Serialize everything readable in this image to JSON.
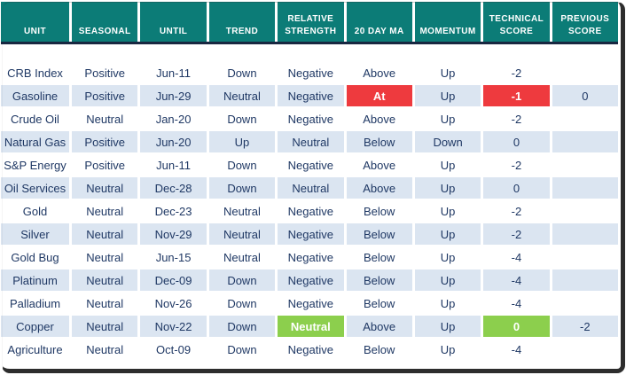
{
  "colors": {
    "header_bg": "#0c7c77",
    "divider": "#182741",
    "stripe": "#dbe5f1",
    "red": "#ee3a3e",
    "green": "#8ccf4d",
    "text": "#1f3864",
    "frame": "#2d2d2d"
  },
  "table": {
    "columns": [
      {
        "key": "unit",
        "label": "UNIT"
      },
      {
        "key": "seasonal",
        "label": "SEASONAL"
      },
      {
        "key": "until",
        "label": "UNTIL"
      },
      {
        "key": "trend",
        "label": "TREND"
      },
      {
        "key": "relative_strength",
        "label": "RELATIVE\nSTRENGTH"
      },
      {
        "key": "twenty_day_ma",
        "label": "20 DAY MA"
      },
      {
        "key": "momentum",
        "label": "MOMENTUM"
      },
      {
        "key": "technical_score",
        "label": "TECHNICAL\nSCORE"
      },
      {
        "key": "previous_score",
        "label": "PREVIOUS\nSCORE"
      }
    ],
    "rows": [
      {
        "cells": [
          "CRB Index",
          "Positive",
          "Jun-11",
          "Down",
          "Negative",
          "Above",
          "Up",
          "-2",
          ""
        ],
        "highlights": {}
      },
      {
        "cells": [
          "Gasoline",
          "Positive",
          "Jun-29",
          "Neutral",
          "Negative",
          "At",
          "Up",
          "-1",
          "0"
        ],
        "highlights": {
          "5": "red",
          "7": "red"
        }
      },
      {
        "cells": [
          "Crude Oil",
          "Neutral",
          "Jan-20",
          "Down",
          "Negative",
          "Above",
          "Up",
          "-2",
          ""
        ],
        "highlights": {}
      },
      {
        "cells": [
          "Natural Gas",
          "Positive",
          "Jun-20",
          "Up",
          "Neutral",
          "Below",
          "Down",
          "0",
          ""
        ],
        "highlights": {}
      },
      {
        "cells": [
          "S&P Energy",
          "Positive",
          "Jun-11",
          "Down",
          "Negative",
          "Above",
          "Up",
          "-2",
          ""
        ],
        "highlights": {}
      },
      {
        "cells": [
          "Oil Services",
          "Neutral",
          "Dec-28",
          "Down",
          "Neutral",
          "Above",
          "Up",
          "0",
          ""
        ],
        "highlights": {}
      },
      {
        "cells": [
          "Gold",
          "Neutral",
          "Dec-23",
          "Neutral",
          "Negative",
          "Below",
          "Up",
          "-2",
          ""
        ],
        "highlights": {}
      },
      {
        "cells": [
          "Silver",
          "Neutral",
          "Nov-29",
          "Neutral",
          "Negative",
          "Below",
          "Up",
          "-2",
          ""
        ],
        "highlights": {}
      },
      {
        "cells": [
          "Gold Bug",
          "Neutral",
          "Jun-15",
          "Neutral",
          "Negative",
          "Below",
          "Up",
          "-4",
          ""
        ],
        "highlights": {}
      },
      {
        "cells": [
          "Platinum",
          "Neutral",
          "Dec-09",
          "Down",
          "Negative",
          "Below",
          "Up",
          "-4",
          ""
        ],
        "highlights": {}
      },
      {
        "cells": [
          "Palladium",
          "Neutral",
          "Nov-26",
          "Down",
          "Negative",
          "Below",
          "Up",
          "-4",
          ""
        ],
        "highlights": {}
      },
      {
        "cells": [
          "Copper",
          "Neutral",
          "Nov-22",
          "Down",
          "Neutral",
          "Above",
          "Up",
          "0",
          "-2"
        ],
        "highlights": {
          "4": "green",
          "7": "green"
        }
      },
      {
        "cells": [
          "Agriculture",
          "Neutral",
          "Oct-09",
          "Down",
          "Negative",
          "Below",
          "Up",
          "-4",
          ""
        ],
        "highlights": {}
      }
    ]
  }
}
